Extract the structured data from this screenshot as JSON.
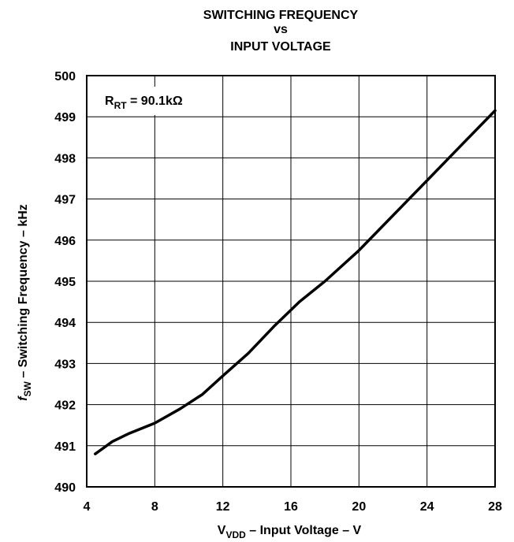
{
  "chart_data": {
    "type": "line",
    "title": [
      "SWITCHING FREQUENCY",
      "vs",
      "INPUT VOLTAGE"
    ],
    "xlabel": {
      "main": "V",
      "sub": "VDD",
      "rest": " – Input Voltage – V"
    },
    "ylabel": {
      "main": "f",
      "sub": "SW",
      "rest": " – Switching Frequency – kHz"
    },
    "annotation": {
      "main": "R",
      "sub": "RT",
      "rest": " = 90.1kΩ"
    },
    "xlim": [
      4,
      28
    ],
    "ylim": [
      490,
      500
    ],
    "xticks": [
      4,
      8,
      12,
      16,
      20,
      24,
      28
    ],
    "yticks": [
      490,
      491,
      492,
      493,
      494,
      495,
      496,
      497,
      498,
      499,
      500
    ],
    "grid": true,
    "series": [
      {
        "x": [
          4.5,
          5.0,
          5.5,
          6.5,
          8.0,
          9.5,
          10.8,
          12.0,
          13.5,
          15.0,
          16.5,
          18.0,
          20.0,
          22.0,
          24.0,
          26.0,
          28.0
        ],
        "y": [
          490.8,
          490.95,
          491.1,
          491.3,
          491.55,
          491.9,
          492.25,
          492.7,
          493.25,
          493.9,
          494.5,
          495.0,
          495.75,
          496.6,
          497.45,
          498.3,
          499.15
        ]
      }
    ]
  }
}
